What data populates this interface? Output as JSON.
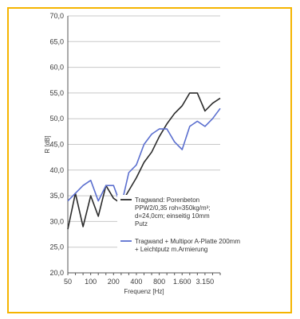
{
  "chart_data": {
    "type": "line",
    "xlabel": "Frequenz [Hz]",
    "ylabel": "R [dB]",
    "ylim": [
      20,
      70
    ],
    "yticks": [
      "20,0",
      "25,0",
      "30,0",
      "35,0",
      "40,0",
      "45,0",
      "50,0",
      "55,0",
      "60,0",
      "65,0",
      "70,0"
    ],
    "xticks": [
      "50",
      "100",
      "200",
      "400",
      "800",
      "1.600",
      "3.150"
    ],
    "x": [
      "50",
      "63",
      "80",
      "100",
      "125",
      "160",
      "200",
      "250",
      "315",
      "400",
      "500",
      "630",
      "800",
      "1000",
      "1250",
      "1600",
      "2000",
      "2500",
      "3150",
      "4000",
      "5000"
    ],
    "grid": true,
    "legend_position": "right-lower",
    "series": [
      {
        "name": "Tragwand: Porenbeton PPW2/0,35 roh=350kg/m³; d=24,0cm; einseitig 10mm Putz",
        "color": "#2b2b2b",
        "values": [
          28.5,
          35.5,
          29.0,
          35.0,
          31.0,
          37.0,
          34.5,
          33.5,
          36.0,
          38.5,
          41.5,
          43.5,
          46.5,
          49.0,
          51.0,
          52.5,
          55.0,
          55.0,
          51.5,
          53.0,
          54.0
        ]
      },
      {
        "name": "Tragwand + Multipor A-Platte 200mm + Leichtputz m.Armierung",
        "color": "#5b6fcf",
        "values": [
          34.0,
          35.5,
          37.0,
          38.0,
          34.0,
          37.0,
          37.0,
          33.0,
          39.5,
          41.0,
          45.0,
          47.0,
          48.0,
          48.0,
          45.5,
          44.0,
          48.5,
          49.5,
          48.5,
          50.0,
          52.0
        ]
      }
    ]
  }
}
